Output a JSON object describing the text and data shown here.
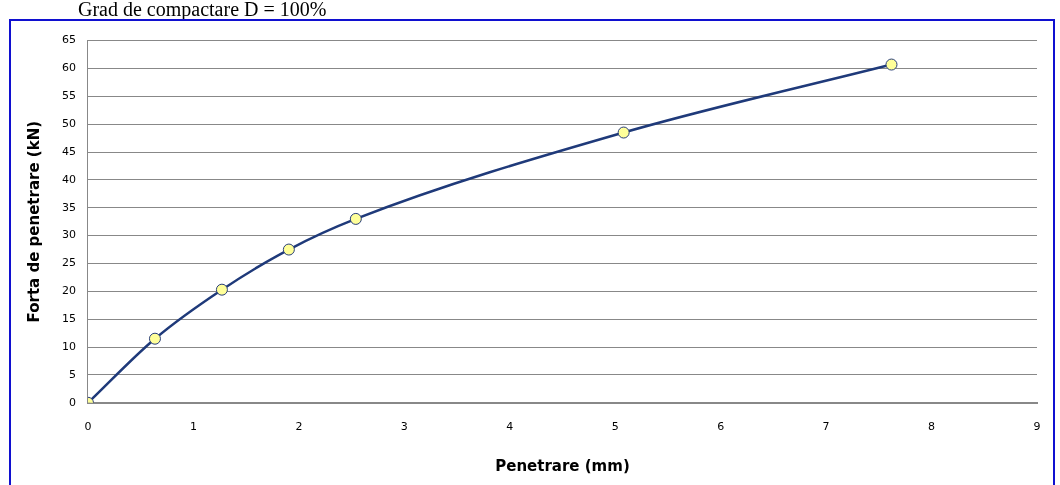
{
  "chart_data": {
    "type": "line",
    "title": "Grad de compactare D = 100%",
    "xlabel": "Penetrare (mm)",
    "ylabel": "Forta de penetrare (kN)",
    "x": [
      0,
      0.635,
      1.27,
      1.905,
      2.54,
      5.08,
      7.62
    ],
    "series": [
      {
        "color": "#1f3a7a",
        "values": [
          0,
          11.5,
          20.3,
          27.5,
          33,
          48.5,
          60.7
        ]
      }
    ],
    "xlim": [
      0,
      9
    ],
    "xticks": [
      0,
      1,
      2,
      3,
      4,
      5,
      6,
      7,
      8,
      9
    ],
    "ylim": [
      0,
      65
    ],
    "yticks": [
      0,
      5,
      10,
      15,
      20,
      25,
      30,
      35,
      40,
      45,
      50,
      55,
      60,
      65
    ],
    "grid": "y",
    "legend": false,
    "marker": "circle",
    "line_style": "solid"
  }
}
